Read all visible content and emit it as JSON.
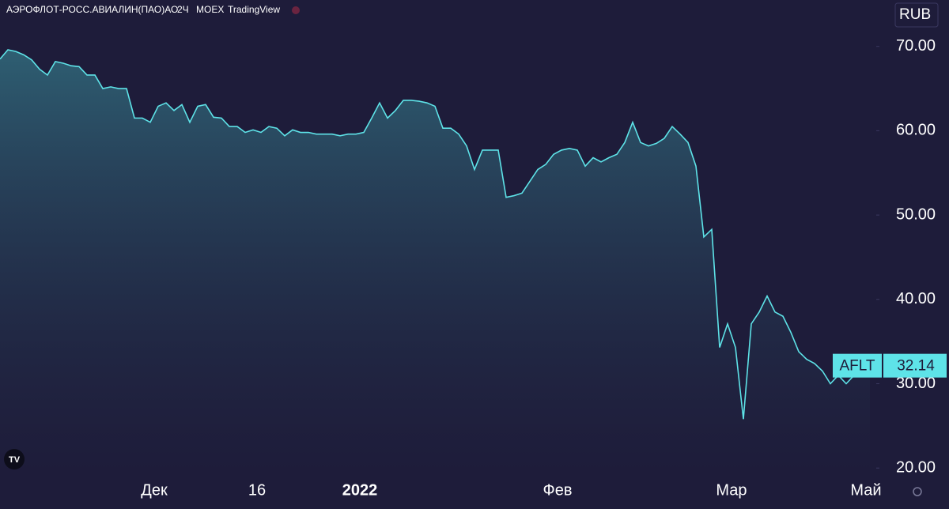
{
  "header": {
    "symbol_name": "АЭРОФЛОТ-РОСС.АВИАЛИН(ПАО)АО",
    "interval": "2Ч",
    "exchange": "MOEX",
    "source": "TradingView"
  },
  "currency": "RUB",
  "symbol": "AFLT",
  "chart_data": {
    "type": "area",
    "color": "#5ee3e8",
    "categories": [
      null,
      null,
      null,
      null,
      null,
      null,
      null,
      null,
      null,
      null,
      null,
      null,
      null,
      null,
      null,
      null,
      null,
      null,
      null,
      null,
      "Дек",
      null,
      null,
      null,
      null,
      null,
      null,
      null,
      null,
      null,
      null,
      null,
      null,
      "16",
      null,
      null,
      null,
      null,
      null,
      null,
      null,
      null,
      null,
      null,
      null,
      null,
      "2022",
      null,
      null,
      null,
      null,
      null,
      null,
      null,
      null,
      null,
      null,
      null,
      null,
      null,
      null,
      null,
      null,
      null,
      null,
      null,
      null,
      null,
      null,
      null,
      null,
      "Фев",
      null,
      null,
      null,
      null,
      null,
      null,
      null,
      null,
      null,
      null,
      null,
      null,
      null,
      null,
      null,
      null,
      null,
      null,
      null,
      null,
      null,
      "Мар",
      null,
      null,
      null,
      null,
      null,
      null,
      null,
      null,
      null,
      null,
      null,
      null,
      null,
      null,
      null,
      null,
      "Май"
    ],
    "values": [
      68.5,
      69.6,
      69.4,
      69,
      68.4,
      67.3,
      66.6,
      68.2,
      68,
      67.7,
      67.6,
      66.6,
      66.6,
      65,
      65.2,
      65,
      65,
      61.5,
      61.5,
      61,
      62.9,
      63.3,
      62.4,
      63.1,
      61,
      62.9,
      63.1,
      61.6,
      61.5,
      60.5,
      60.5,
      59.8,
      60.1,
      59.8,
      60.5,
      60.3,
      59.4,
      60.1,
      59.8,
      59.8,
      59.6,
      59.6,
      59.6,
      59.4,
      59.6,
      59.6,
      59.8,
      61.5,
      63.3,
      61.5,
      62.4,
      63.6,
      63.6,
      63.5,
      63.3,
      62.9,
      60.3,
      60.3,
      59.6,
      58.2,
      55.4,
      57.7,
      57.7,
      57.7,
      52.1,
      52.3,
      52.6,
      54,
      55.4,
      56,
      57.2,
      57.7,
      57.9,
      57.7,
      55.8,
      56.8,
      56.3,
      56.8,
      57.2,
      58.6,
      61,
      58.6,
      58.2,
      58.5,
      59.1,
      60.5,
      59.6,
      58.6,
      55.8,
      47.4,
      48.3,
      34.3,
      37.1,
      34.3,
      25.8,
      37.1,
      38.5,
      40.4,
      38.5,
      38,
      36.1,
      33.8,
      32.9,
      32.4,
      31.5,
      30,
      31,
      30,
      31,
      31.9,
      32.14
    ],
    "ylim": [
      18.8,
      75.5
    ],
    "yticks": [
      {
        "value": 20,
        "label": "20.00"
      },
      {
        "value": 30,
        "label": "30.00"
      },
      {
        "value": 40,
        "label": "40.00"
      },
      {
        "value": 50,
        "label": "50.00"
      },
      {
        "value": 60,
        "label": "60.00"
      },
      {
        "value": 70,
        "label": "70.00"
      }
    ]
  }
}
